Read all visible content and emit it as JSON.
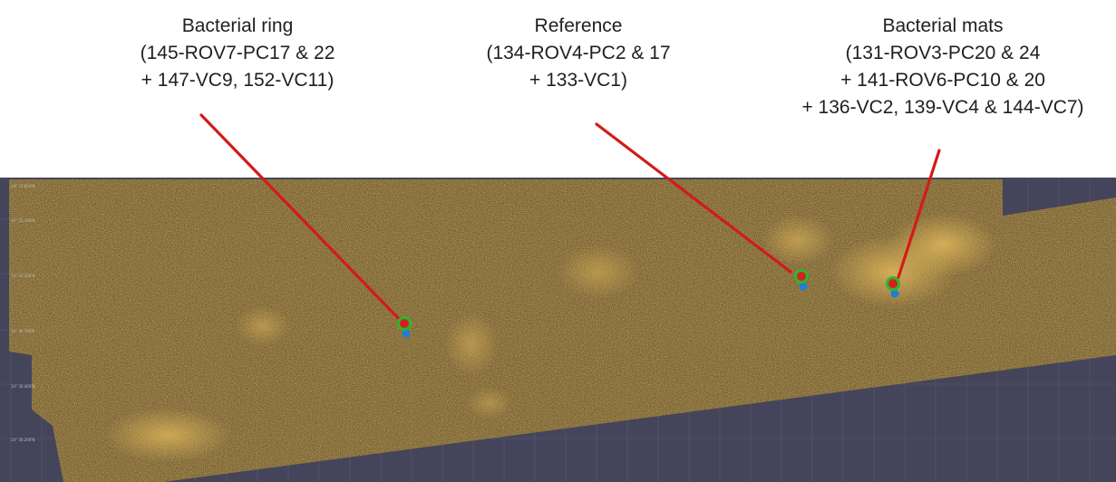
{
  "colors": {
    "map_background": "#44455a",
    "mosaic_gold": "#8a6a22",
    "pointer_line": "#d41a1a",
    "marker_ring": "#2fb52f",
    "marker_center": "#d42020",
    "marker_dot": "#1f7fd6"
  },
  "annotations": [
    {
      "id": "bacterial-ring",
      "lines": [
        "Bacterial ring",
        "(145-ROV7-PC17 & 22",
        "+ 147-VC9, 152-VC11)"
      ]
    },
    {
      "id": "reference",
      "lines": [
        "Reference",
        "(134-ROV4-PC2 & 17",
        "+ 133-VC1)"
      ]
    },
    {
      "id": "bacterial-mats",
      "lines": [
        "Bacterial mats",
        "(131-ROV3-PC20 & 24",
        "+ 141-ROV6-PC10 & 20",
        "+ 136-VC2, 139-VC4 & 144-VC7)"
      ]
    }
  ],
  "map": {
    "lat_ticks": [
      "14° 31.600'N",
      "14° 31.300'N",
      "14° 31.100'N",
      "14° 30.700'N",
      "14° 30.400'N",
      "14° 30.200'N"
    ],
    "markers": [
      {
        "name": "bacterial-ring-marker",
        "icon": "sampling-site-marker-icon"
      },
      {
        "name": "reference-marker",
        "icon": "sampling-site-marker-icon"
      },
      {
        "name": "bacterial-mats-marker",
        "icon": "sampling-site-marker-icon"
      }
    ]
  }
}
